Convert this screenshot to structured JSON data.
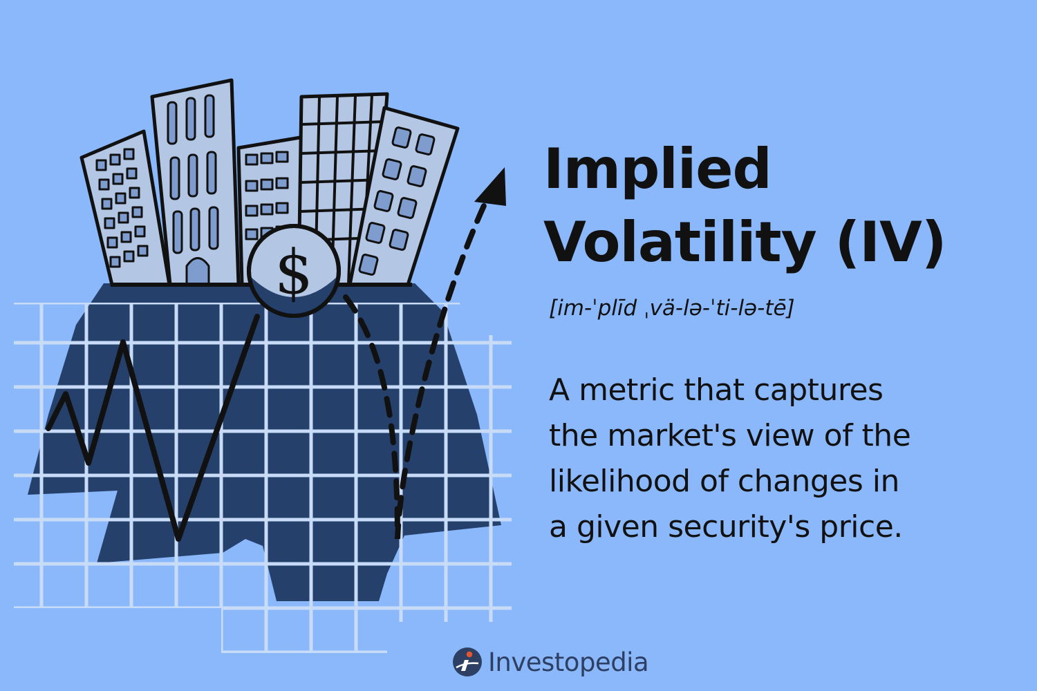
{
  "colors": {
    "background": "#8ab8fb",
    "ink": "#111111",
    "navy": "#24406b",
    "building_fill": "#b3c6e3",
    "window_fill": "#7f9ccf",
    "grid_line": "#c9dcf7",
    "brand_logo": "#2d3f63",
    "brand_logo_accent": "#e4572e"
  },
  "illustration": {
    "icons": [
      "buildings-icon",
      "dollar-coin-icon",
      "zigzag-line-icon",
      "dashed-arrow-icon",
      "grid-icon"
    ],
    "coin_symbol": "$"
  },
  "title": {
    "line1": "Implied",
    "line2": "Volatility (IV)"
  },
  "pronunciation": "[im-ˈplīd ˌvä-lə-ˈti-lə-tē]",
  "description": {
    "lines": [
      "A metric that captures",
      "the market's view of the",
      "likelihood of changes in",
      "a given security's price."
    ]
  },
  "brand": {
    "name": "Investopedia",
    "icon": "investopedia-logo-icon"
  }
}
